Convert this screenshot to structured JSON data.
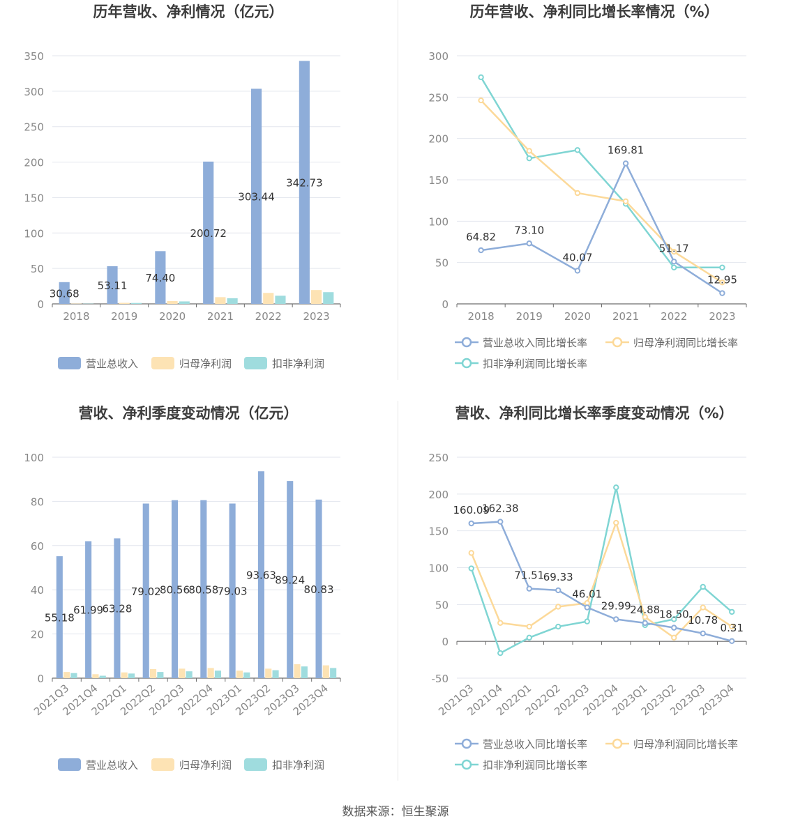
{
  "colors": {
    "revenue": "#8eadd9",
    "net_profit": "#fde3b4",
    "deducted_profit": "#9fdcde",
    "line_revenue": "#8eadd9",
    "line_net": "#fcd999",
    "line_deducted": "#7fd5d3",
    "grid": "#e3e6ee",
    "axis": "#6e6e6e",
    "tick_text": "#888888",
    "title_text": "#3c3c3c",
    "label_text": "#333333"
  },
  "source_text": "数据来源：恒生聚源",
  "chart_data": [
    {
      "type": "bar",
      "title": "历年营收、净利情况（亿元）",
      "categories": [
        "2018",
        "2019",
        "2020",
        "2021",
        "2022",
        "2023"
      ],
      "ylim": [
        0,
        350
      ],
      "yticks": [
        0,
        50,
        100,
        150,
        200,
        250,
        300,
        350
      ],
      "grid": true,
      "legend_position": "bottom",
      "series": [
        {
          "name": "营业总收入",
          "color_key": "revenue",
          "values": [
            30.68,
            53.11,
            74.4,
            200.72,
            303.44,
            342.73
          ],
          "labels": [
            "30.68",
            "53.11",
            "74.40",
            "200.72",
            "303.44",
            "342.73"
          ]
        },
        {
          "name": "归母净利润",
          "color_key": "net_profit",
          "values": [
            0.4,
            1.5,
            4.0,
            9.5,
            15.5,
            19.5
          ]
        },
        {
          "name": "扣非净利润",
          "color_key": "deducted_profit",
          "values": [
            0.3,
            1.3,
            3.5,
            8.0,
            11.5,
            16.5
          ]
        }
      ]
    },
    {
      "type": "line",
      "title": "历年营收、净利同比增长率情况（%）",
      "categories": [
        "2018",
        "2019",
        "2020",
        "2021",
        "2022",
        "2023"
      ],
      "ylim": [
        0,
        300
      ],
      "yticks": [
        0,
        50,
        100,
        150,
        200,
        250,
        300
      ],
      "grid": true,
      "legend_position": "bottom",
      "series": [
        {
          "name": "营业总收入同比增长率",
          "color_key": "line_revenue",
          "values": [
            64.82,
            73.1,
            40.07,
            169.81,
            51.17,
            12.95
          ],
          "labels": [
            "64.82",
            "73.10",
            "40.07",
            "169.81",
            "51.17",
            "12.95"
          ]
        },
        {
          "name": "归母净利润同比增长率",
          "color_key": "line_net",
          "values": [
            246,
            185,
            134,
            124,
            63,
            26
          ]
        },
        {
          "name": "扣非净利润同比增长率",
          "color_key": "line_deducted",
          "values": [
            274,
            176,
            186,
            121,
            44,
            44
          ]
        }
      ]
    },
    {
      "type": "bar",
      "title": "营收、净利季度变动情况（亿元）",
      "categories": [
        "2021Q3",
        "2021Q4",
        "2022Q1",
        "2022Q2",
        "2022Q3",
        "2022Q4",
        "2023Q1",
        "2023Q2",
        "2023Q3",
        "2023Q4"
      ],
      "ylim": [
        0,
        100
      ],
      "yticks": [
        0,
        20,
        40,
        60,
        80,
        100
      ],
      "grid": true,
      "legend_position": "bottom",
      "series": [
        {
          "name": "营业总收入",
          "color_key": "revenue",
          "values": [
            55.18,
            61.99,
            63.28,
            79.02,
            80.56,
            80.58,
            79.03,
            93.63,
            89.24,
            80.83
          ],
          "labels": [
            "55.18",
            "61.99",
            "63.28",
            "79.02",
            "80.56",
            "80.58",
            "79.03",
            "93.63",
            "89.24",
            "80.83"
          ]
        },
        {
          "name": "归母净利润",
          "color_key": "net_profit",
          "values": [
            2.8,
            1.8,
            2.6,
            4.1,
            4.3,
            4.6,
            3.4,
            4.3,
            6.3,
            5.8
          ]
        },
        {
          "name": "扣非净利润",
          "color_key": "deducted_profit",
          "values": [
            2.3,
            1.1,
            2.1,
            2.8,
            3.1,
            3.4,
            2.6,
            3.6,
            5.3,
            4.6
          ]
        }
      ]
    },
    {
      "type": "line",
      "title": "营收、净利同比增长率季度变动情况（%）",
      "categories": [
        "2021Q3",
        "2021Q4",
        "2022Q1",
        "2022Q2",
        "2022Q3",
        "2022Q4",
        "2023Q1",
        "2023Q2",
        "2023Q3",
        "2023Q4"
      ],
      "ylim": [
        -50,
        250
      ],
      "yticks": [
        -50,
        0,
        50,
        100,
        150,
        200,
        250
      ],
      "grid": true,
      "legend_position": "bottom",
      "series": [
        {
          "name": "营业总收入同比增长率",
          "color_key": "line_revenue",
          "values": [
            160.09,
            162.38,
            71.51,
            69.33,
            46.01,
            29.99,
            24.88,
            18.5,
            10.78,
            0.31
          ],
          "labels": [
            "160.09",
            "162.38",
            "71.51",
            "69.33",
            "46.01",
            "29.99",
            "24.88",
            "18.50",
            "10.78",
            "0.31"
          ]
        },
        {
          "name": "归母净利润同比增长率",
          "color_key": "line_net",
          "values": [
            120,
            25,
            20,
            47,
            52,
            161,
            33,
            5,
            46,
            20
          ]
        },
        {
          "name": "扣非净利润同比增长率",
          "color_key": "line_deducted",
          "values": [
            99,
            -16,
            5,
            20,
            27,
            209,
            22,
            30,
            74,
            40
          ]
        }
      ]
    }
  ]
}
